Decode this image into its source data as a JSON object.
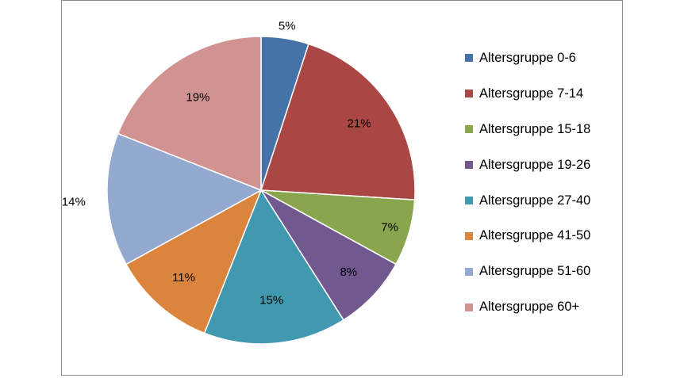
{
  "chart_data": {
    "type": "pie",
    "categories": [
      "Altersgruppe 0-6",
      "Altersgruppe 7-14",
      "Altersgruppe 15-18",
      "Altersgruppe 19-26",
      "Altersgruppe 27-40",
      "Altersgruppe 41-50",
      "Altersgruppe 51-60",
      "Altersgruppe 60+"
    ],
    "values": [
      5,
      21,
      7,
      8,
      15,
      11,
      14,
      19
    ],
    "data_labels": [
      "5%",
      "21%",
      "7%",
      "8%",
      "15%",
      "11%",
      "14%",
      "19%"
    ],
    "colors": [
      "#4572A7",
      "#AA4643",
      "#89A54E",
      "#71588F",
      "#4198AF",
      "#DB843D",
      "#93A9CF",
      "#D19392"
    ],
    "title": "",
    "legend_position": "right",
    "start_angle": "12 o'clock, clockwise"
  }
}
